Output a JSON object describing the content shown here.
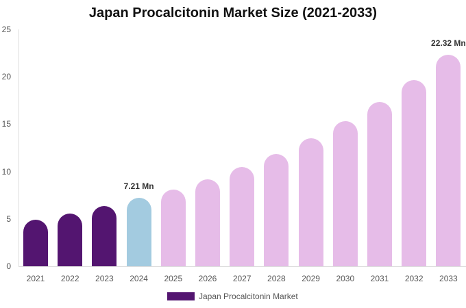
{
  "chart_data": {
    "type": "bar",
    "title": "Japan Procalcitonin Market Size (2021-2033)",
    "xlabel": "",
    "ylabel": "",
    "ylim": [
      0,
      25
    ],
    "yticks": [
      0,
      5,
      10,
      15,
      20,
      25
    ],
    "categories": [
      "2021",
      "2022",
      "2023",
      "2024",
      "2025",
      "2026",
      "2027",
      "2028",
      "2029",
      "2030",
      "2031",
      "2032",
      "2033"
    ],
    "series": [
      {
        "name": "Japan Procalcitonin Market",
        "values": [
          4.93,
          5.58,
          6.38,
          7.21,
          8.12,
          9.2,
          10.51,
          11.88,
          13.48,
          15.29,
          17.32,
          19.64,
          22.32
        ]
      }
    ],
    "bar_colors": [
      "#531570",
      "#531570",
      "#531570",
      "#a3cbe0",
      "#e6bce8",
      "#e6bce8",
      "#e6bce8",
      "#e6bce8",
      "#e6bce8",
      "#e6bce8",
      "#e6bce8",
      "#e6bce8",
      "#e6bce8"
    ],
    "annotations": [
      {
        "index": 3,
        "text": "7.21 Mn"
      },
      {
        "index": 12,
        "text": "22.32 Mn"
      }
    ],
    "legend": {
      "position": "bottom",
      "entries": [
        {
          "label": "Japan Procalcitonin Market",
          "color": "#531570"
        }
      ]
    },
    "grid": false
  }
}
